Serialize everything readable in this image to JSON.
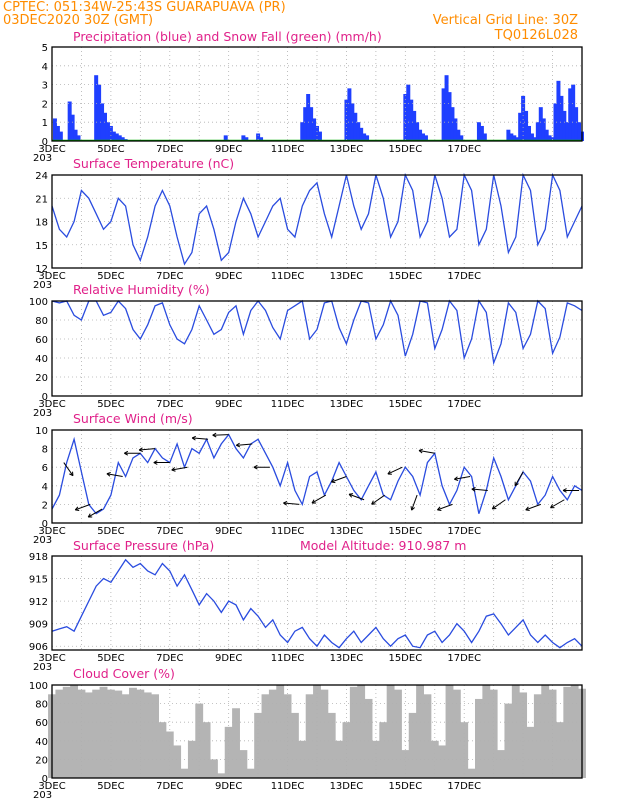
{
  "header": {
    "left_line1": "CPTEC:   051:34W-25:43S   GUARAPUAVA (PR)",
    "left_line2": "03DEC2020 30Z (GMT)",
    "right_line1": "Vertical Grid Line: 30Z",
    "right_line2": "TQ0126L028"
  },
  "colors": {
    "header": "#ff8c00",
    "title": "#e0218a",
    "precip": "#1f3fff",
    "snow": "#00b000",
    "line": "#2a4cdf",
    "cloud": "#b4b4b4",
    "arrow": "#000000"
  },
  "x_ticks": [
    "3DEC",
    "5DEC",
    "7DEC",
    "9DEC",
    "11DEC",
    "13DEC",
    "15DEC",
    "17DEC"
  ],
  "corner_label": "203",
  "chart_data": [
    {
      "type": "bar",
      "title": "Precipitation (blue) and Snow Fall (green) (mm/h)",
      "ylim": [
        0,
        5
      ],
      "yticks": [
        0,
        1,
        2,
        3,
        4,
        5
      ],
      "grid": true,
      "series": [
        {
          "name": "Precipitation",
          "x_days": [
            0.1,
            0.2,
            0.3,
            0.6,
            0.7,
            0.8,
            0.9,
            1.5,
            1.6,
            1.7,
            1.8,
            1.9,
            2.0,
            2.1,
            2.2,
            2.3,
            2.4,
            2.5,
            5.9,
            6.5,
            6.6,
            7.0,
            7.1,
            8.5,
            8.6,
            8.7,
            8.8,
            8.9,
            9.0,
            9.1,
            10.0,
            10.1,
            10.2,
            10.3,
            10.4,
            10.5,
            10.6,
            10.7,
            12.0,
            12.1,
            12.2,
            12.3,
            12.4,
            12.5,
            12.6,
            12.7,
            13.3,
            13.4,
            13.5,
            13.6,
            13.7,
            13.8,
            13.9,
            14.5,
            14.6,
            14.7,
            15.5,
            15.6,
            15.7,
            15.8,
            15.9,
            16.0,
            16.1,
            16.2,
            16.3,
            16.4,
            16.5,
            16.6,
            16.7,
            16.8,
            16.9,
            17.0,
            17.1,
            17.2,
            17.3,
            17.4,
            17.5,
            17.6,
            17.7,
            17.8,
            17.9,
            18.0
          ],
          "values": [
            1.2,
            0.8,
            0.5,
            2.1,
            1.4,
            0.6,
            0.3,
            3.5,
            3.0,
            2.0,
            1.5,
            1.0,
            0.8,
            0.5,
            0.4,
            0.3,
            0.2,
            0.1,
            0.3,
            0.3,
            0.2,
            0.4,
            0.2,
            1.0,
            1.8,
            2.5,
            1.8,
            1.2,
            0.8,
            0.5,
            2.2,
            2.8,
            2.0,
            1.5,
            1.0,
            0.7,
            0.4,
            0.3,
            2.5,
            3.0,
            2.2,
            1.6,
            1.0,
            0.6,
            0.4,
            0.3,
            2.8,
            3.5,
            2.6,
            1.8,
            1.2,
            0.6,
            0.3,
            1.0,
            0.8,
            0.4,
            0.6,
            0.4,
            0.3,
            0.2,
            1.5,
            2.4,
            1.6,
            0.8,
            0.4,
            0.2,
            1.0,
            1.8,
            1.2,
            0.6,
            0.3,
            0.2,
            2.0,
            3.2,
            2.4,
            1.6,
            1.0,
            2.8,
            3.0,
            1.8,
            1.0,
            0.5
          ]
        },
        {
          "name": "Snow Fall",
          "x_days": [],
          "values": []
        }
      ]
    },
    {
      "type": "line",
      "title": "Surface Temperature (nC)",
      "ylim": [
        12,
        24
      ],
      "yticks": [
        12,
        15,
        18,
        21,
        24
      ],
      "grid": true,
      "x_days": [
        0,
        0.25,
        0.5,
        0.75,
        1,
        1.25,
        1.5,
        1.75,
        2,
        2.25,
        2.5,
        2.75,
        3,
        3.25,
        3.5,
        3.75,
        4,
        4.25,
        4.5,
        4.75,
        5,
        5.25,
        5.5,
        5.75,
        6,
        6.25,
        6.5,
        6.75,
        7,
        7.25,
        7.5,
        7.75,
        8,
        8.25,
        8.5,
        8.75,
        9,
        9.25,
        9.5,
        9.75,
        10,
        10.25,
        10.5,
        10.75,
        11,
        11.25,
        11.5,
        11.75,
        12,
        12.25,
        12.5,
        12.75,
        13,
        13.25,
        13.5,
        13.75,
        14,
        14.25,
        14.5,
        14.75,
        15,
        15.25,
        15.5,
        15.75,
        16,
        16.25,
        16.5,
        16.75,
        17,
        17.25,
        17.5,
        17.75,
        18
      ],
      "values": [
        20,
        17,
        16,
        18,
        22,
        21,
        19,
        17,
        18,
        21,
        20,
        15,
        13,
        16,
        20,
        22,
        20,
        16,
        12.5,
        14,
        19,
        20,
        17,
        13,
        14,
        18,
        21,
        19,
        16,
        18,
        20,
        21,
        17,
        16,
        20,
        22,
        23,
        19,
        16,
        20,
        24,
        20,
        17,
        19,
        24,
        21,
        16,
        18,
        24,
        22,
        16,
        18,
        24,
        21,
        16,
        17,
        24,
        22,
        15,
        17,
        24,
        20,
        14,
        16,
        24,
        22,
        15,
        17,
        24,
        22,
        16,
        18,
        20
      ]
    },
    {
      "type": "line",
      "title": "Relative Humidity (%)",
      "ylim": [
        0,
        100
      ],
      "yticks": [
        0,
        20,
        40,
        60,
        80,
        100
      ],
      "grid": true,
      "x_days": [
        0,
        0.25,
        0.5,
        0.75,
        1,
        1.25,
        1.5,
        1.75,
        2,
        2.25,
        2.5,
        2.75,
        3,
        3.25,
        3.5,
        3.75,
        4,
        4.25,
        4.5,
        4.75,
        5,
        5.25,
        5.5,
        5.75,
        6,
        6.25,
        6.5,
        6.75,
        7,
        7.25,
        7.5,
        7.75,
        8,
        8.25,
        8.5,
        8.75,
        9,
        9.25,
        9.5,
        9.75,
        10,
        10.25,
        10.5,
        10.75,
        11,
        11.25,
        11.5,
        11.75,
        12,
        12.25,
        12.5,
        12.75,
        13,
        13.25,
        13.5,
        13.75,
        14,
        14.25,
        14.5,
        14.75,
        15,
        15.25,
        15.5,
        15.75,
        16,
        16.25,
        16.5,
        16.75,
        17,
        17.25,
        17.5,
        17.75,
        18
      ],
      "values": [
        100,
        98,
        100,
        85,
        80,
        100,
        100,
        85,
        88,
        100,
        92,
        70,
        60,
        75,
        95,
        98,
        75,
        60,
        55,
        70,
        95,
        80,
        65,
        70,
        88,
        95,
        65,
        90,
        100,
        90,
        72,
        60,
        90,
        95,
        100,
        60,
        70,
        98,
        100,
        72,
        55,
        80,
        100,
        98,
        60,
        75,
        100,
        85,
        42,
        65,
        100,
        98,
        50,
        70,
        100,
        90,
        40,
        60,
        100,
        88,
        35,
        55,
        98,
        88,
        50,
        65,
        100,
        92,
        45,
        62,
        98,
        95,
        90
      ]
    },
    {
      "type": "line",
      "title": "Surface Wind (m/s)",
      "ylim": [
        0,
        10
      ],
      "yticks": [
        0,
        2,
        4,
        6,
        8,
        10
      ],
      "grid": true,
      "x_days": [
        0,
        0.25,
        0.5,
        0.75,
        1,
        1.25,
        1.5,
        1.75,
        2,
        2.25,
        2.5,
        2.75,
        3,
        3.25,
        3.5,
        3.75,
        4,
        4.25,
        4.5,
        4.75,
        5,
        5.25,
        5.5,
        5.75,
        6,
        6.25,
        6.5,
        6.75,
        7,
        7.25,
        7.5,
        7.75,
        8,
        8.25,
        8.5,
        8.75,
        9,
        9.25,
        9.5,
        9.75,
        10,
        10.25,
        10.5,
        10.75,
        11,
        11.25,
        11.5,
        11.75,
        12,
        12.25,
        12.5,
        12.75,
        13,
        13.25,
        13.5,
        13.75,
        14,
        14.25,
        14.5,
        14.75,
        15,
        15.25,
        15.5,
        15.75,
        16,
        16.25,
        16.5,
        16.75,
        17,
        17.25,
        17.5,
        17.75,
        18
      ],
      "values": [
        1.5,
        3.0,
        6.5,
        9.0,
        5.5,
        2.0,
        1.0,
        1.5,
        3.0,
        6.5,
        5.0,
        7.0,
        7.5,
        6.5,
        8.0,
        7.0,
        6.5,
        8.5,
        6.0,
        8.0,
        7.5,
        9.0,
        7.0,
        8.5,
        9.5,
        8.0,
        7.0,
        8.5,
        9.0,
        7.5,
        6.0,
        4.0,
        6.5,
        3.5,
        2.0,
        5.0,
        5.5,
        3.0,
        4.5,
        6.5,
        5.0,
        3.5,
        2.5,
        4.0,
        5.5,
        3.0,
        2.5,
        4.5,
        6.0,
        5.0,
        3.0,
        6.5,
        7.5,
        4.0,
        2.0,
        3.5,
        6.0,
        5.0,
        1.0,
        3.5,
        7.0,
        5.0,
        2.5,
        4.0,
        5.5,
        4.5,
        2.0,
        3.0,
        5.0,
        3.5,
        2.5,
        4.0,
        3.5
      ],
      "wind_arrows": [
        {
          "day": 0.4,
          "dir_deg": -55
        },
        {
          "day": 1.3,
          "dir_deg": 200
        },
        {
          "day": 1.7,
          "dir_deg": 210
        },
        {
          "day": 2.4,
          "dir_deg": 170
        },
        {
          "day": 3.0,
          "dir_deg": 180
        },
        {
          "day": 3.5,
          "dir_deg": 185
        },
        {
          "day": 4.0,
          "dir_deg": 180
        },
        {
          "day": 4.6,
          "dir_deg": 190
        },
        {
          "day": 5.3,
          "dir_deg": 175
        },
        {
          "day": 6.0,
          "dir_deg": 182
        },
        {
          "day": 6.8,
          "dir_deg": 185
        },
        {
          "day": 7.4,
          "dir_deg": 180
        },
        {
          "day": 8.4,
          "dir_deg": 175
        },
        {
          "day": 9.3,
          "dir_deg": 210
        },
        {
          "day": 10.0,
          "dir_deg": 200
        },
        {
          "day": 10.6,
          "dir_deg": 160
        },
        {
          "day": 11.3,
          "dir_deg": 215
        },
        {
          "day": 11.9,
          "dir_deg": 205
        },
        {
          "day": 12.4,
          "dir_deg": 250
        },
        {
          "day": 13.0,
          "dir_deg": 170
        },
        {
          "day": 13.6,
          "dir_deg": 200
        },
        {
          "day": 14.2,
          "dir_deg": 190
        },
        {
          "day": 14.8,
          "dir_deg": 175
        },
        {
          "day": 15.4,
          "dir_deg": 215
        },
        {
          "day": 16.0,
          "dir_deg": 240
        },
        {
          "day": 16.6,
          "dir_deg": 200
        },
        {
          "day": 17.4,
          "dir_deg": 210
        },
        {
          "day": 17.9,
          "dir_deg": 180
        }
      ]
    },
    {
      "type": "line",
      "title": "Surface Pressure (hPa)",
      "subtitle": "Model Altitude: 910.987 m",
      "ylim": [
        905.5,
        918
      ],
      "yticks": [
        906,
        909,
        912,
        915,
        918
      ],
      "grid": true,
      "x_days": [
        0,
        0.25,
        0.5,
        0.75,
        1,
        1.25,
        1.5,
        1.75,
        2,
        2.25,
        2.5,
        2.75,
        3,
        3.25,
        3.5,
        3.75,
        4,
        4.25,
        4.5,
        4.75,
        5,
        5.25,
        5.5,
        5.75,
        6,
        6.25,
        6.5,
        6.75,
        7,
        7.25,
        7.5,
        7.75,
        8,
        8.25,
        8.5,
        8.75,
        9,
        9.25,
        9.5,
        9.75,
        10,
        10.25,
        10.5,
        10.75,
        11,
        11.25,
        11.5,
        11.75,
        12,
        12.25,
        12.5,
        12.75,
        13,
        13.25,
        13.5,
        13.75,
        14,
        14.25,
        14.5,
        14.75,
        15,
        15.25,
        15.5,
        15.75,
        16,
        16.25,
        16.5,
        16.75,
        17,
        17.25,
        17.5,
        17.75,
        18
      ],
      "values": [
        908,
        908.3,
        908.6,
        908,
        910,
        912,
        914,
        915,
        914.5,
        916,
        917.5,
        916.5,
        917,
        916,
        915.5,
        917,
        916,
        914,
        915.5,
        913.5,
        911.5,
        913,
        912,
        910.5,
        912,
        911.5,
        909.5,
        911,
        910,
        908.5,
        909.5,
        907.5,
        906.5,
        908,
        908.5,
        907,
        906,
        907.5,
        906.5,
        905.8,
        907,
        908,
        906.5,
        907.5,
        908.5,
        907,
        906,
        907,
        907.5,
        906,
        905.8,
        907.5,
        908,
        906.5,
        907.5,
        909,
        908,
        906.5,
        908,
        910,
        910.3,
        909,
        907.5,
        908.5,
        909.5,
        907.5,
        906.5,
        907.5,
        906.5,
        905.8,
        906.5,
        907,
        906
      ]
    },
    {
      "type": "bar",
      "title": "Cloud Cover (%)",
      "ylim": [
        0,
        100
      ],
      "yticks": [
        0,
        20,
        40,
        60,
        80,
        100
      ],
      "grid": true,
      "x_days": [
        0,
        0.25,
        0.5,
        0.75,
        1,
        1.25,
        1.5,
        1.75,
        2,
        2.25,
        2.5,
        2.75,
        3,
        3.25,
        3.5,
        3.75,
        4,
        4.25,
        4.5,
        4.75,
        5,
        5.25,
        5.5,
        5.75,
        6,
        6.25,
        6.5,
        6.75,
        7,
        7.25,
        7.5,
        7.75,
        8,
        8.25,
        8.5,
        8.75,
        9,
        9.25,
        9.5,
        9.75,
        10,
        10.25,
        10.5,
        10.75,
        11,
        11.25,
        11.5,
        11.75,
        12,
        12.25,
        12.5,
        12.75,
        13,
        13.25,
        13.5,
        13.75,
        14,
        14.25,
        14.5,
        14.75,
        15,
        15.25,
        15.5,
        15.75,
        16,
        16.25,
        16.5,
        16.75,
        17,
        17.25,
        17.5,
        17.75,
        18
      ],
      "values": [
        90,
        95,
        98,
        100,
        95,
        92,
        95,
        98,
        95,
        94,
        90,
        97,
        95,
        92,
        90,
        60,
        50,
        35,
        10,
        40,
        80,
        60,
        20,
        5,
        55,
        75,
        30,
        10,
        70,
        90,
        95,
        100,
        90,
        70,
        40,
        90,
        100,
        95,
        70,
        40,
        60,
        98,
        100,
        85,
        40,
        60,
        100,
        95,
        30,
        70,
        100,
        90,
        40,
        35,
        100,
        95,
        60,
        10,
        85,
        100,
        95,
        30,
        80,
        100,
        92,
        55,
        90,
        100,
        95,
        60,
        98,
        100,
        96
      ]
    }
  ]
}
